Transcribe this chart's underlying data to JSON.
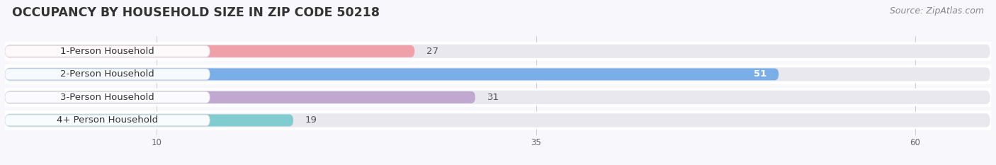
{
  "title": "OCCUPANCY BY HOUSEHOLD SIZE IN ZIP CODE 50218",
  "source": "Source: ZipAtlas.com",
  "categories": [
    "1-Person Household",
    "2-Person Household",
    "3-Person Household",
    "4+ Person Household"
  ],
  "values": [
    27,
    51,
    31,
    19
  ],
  "bar_colors": [
    "#f0a0a8",
    "#7aaee8",
    "#c0a8d0",
    "#80ccd0"
  ],
  "track_color": "#e8e8ee",
  "xlim": [
    0,
    65
  ],
  "xticks": [
    10,
    35,
    60
  ],
  "title_fontsize": 12.5,
  "label_fontsize": 9.5,
  "value_fontsize": 9.5,
  "source_fontsize": 9,
  "background_color": "#f8f8fc",
  "bar_bg_row_color": "#ffffff",
  "value_color_inside": [
    "#555555",
    "#ffffff",
    "#555555",
    "#555555"
  ],
  "value_inside": [
    false,
    true,
    false,
    false
  ]
}
